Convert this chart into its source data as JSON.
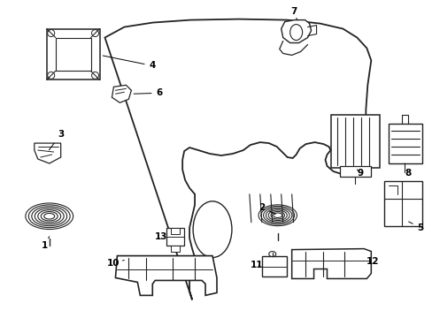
{
  "background_color": "#ffffff",
  "line_color": "#222222",
  "line_width": 1.0,
  "figsize": [
    4.89,
    3.6
  ],
  "dpi": 100,
  "labels_info": {
    "1": [
      0.068,
      0.345,
      0.085,
      0.375
    ],
    "2": [
      0.458,
      0.415,
      0.478,
      0.435
    ],
    "3": [
      0.068,
      0.595,
      0.085,
      0.575
    ],
    "4": [
      0.185,
      0.76,
      0.155,
      0.79
    ],
    "5": [
      0.885,
      0.44,
      0.855,
      0.455
    ],
    "6": [
      0.248,
      0.67,
      0.225,
      0.66
    ],
    "7": [
      0.592,
      0.945,
      0.592,
      0.91
    ],
    "8": [
      0.88,
      0.545,
      0.88,
      0.56
    ],
    "9": [
      0.742,
      0.465,
      0.742,
      0.495
    ],
    "10": [
      0.16,
      0.265,
      0.195,
      0.285
    ],
    "11": [
      0.465,
      0.26,
      0.465,
      0.285
    ],
    "12": [
      0.625,
      0.245,
      0.59,
      0.275
    ],
    "13": [
      0.248,
      0.31,
      0.258,
      0.33
    ]
  }
}
